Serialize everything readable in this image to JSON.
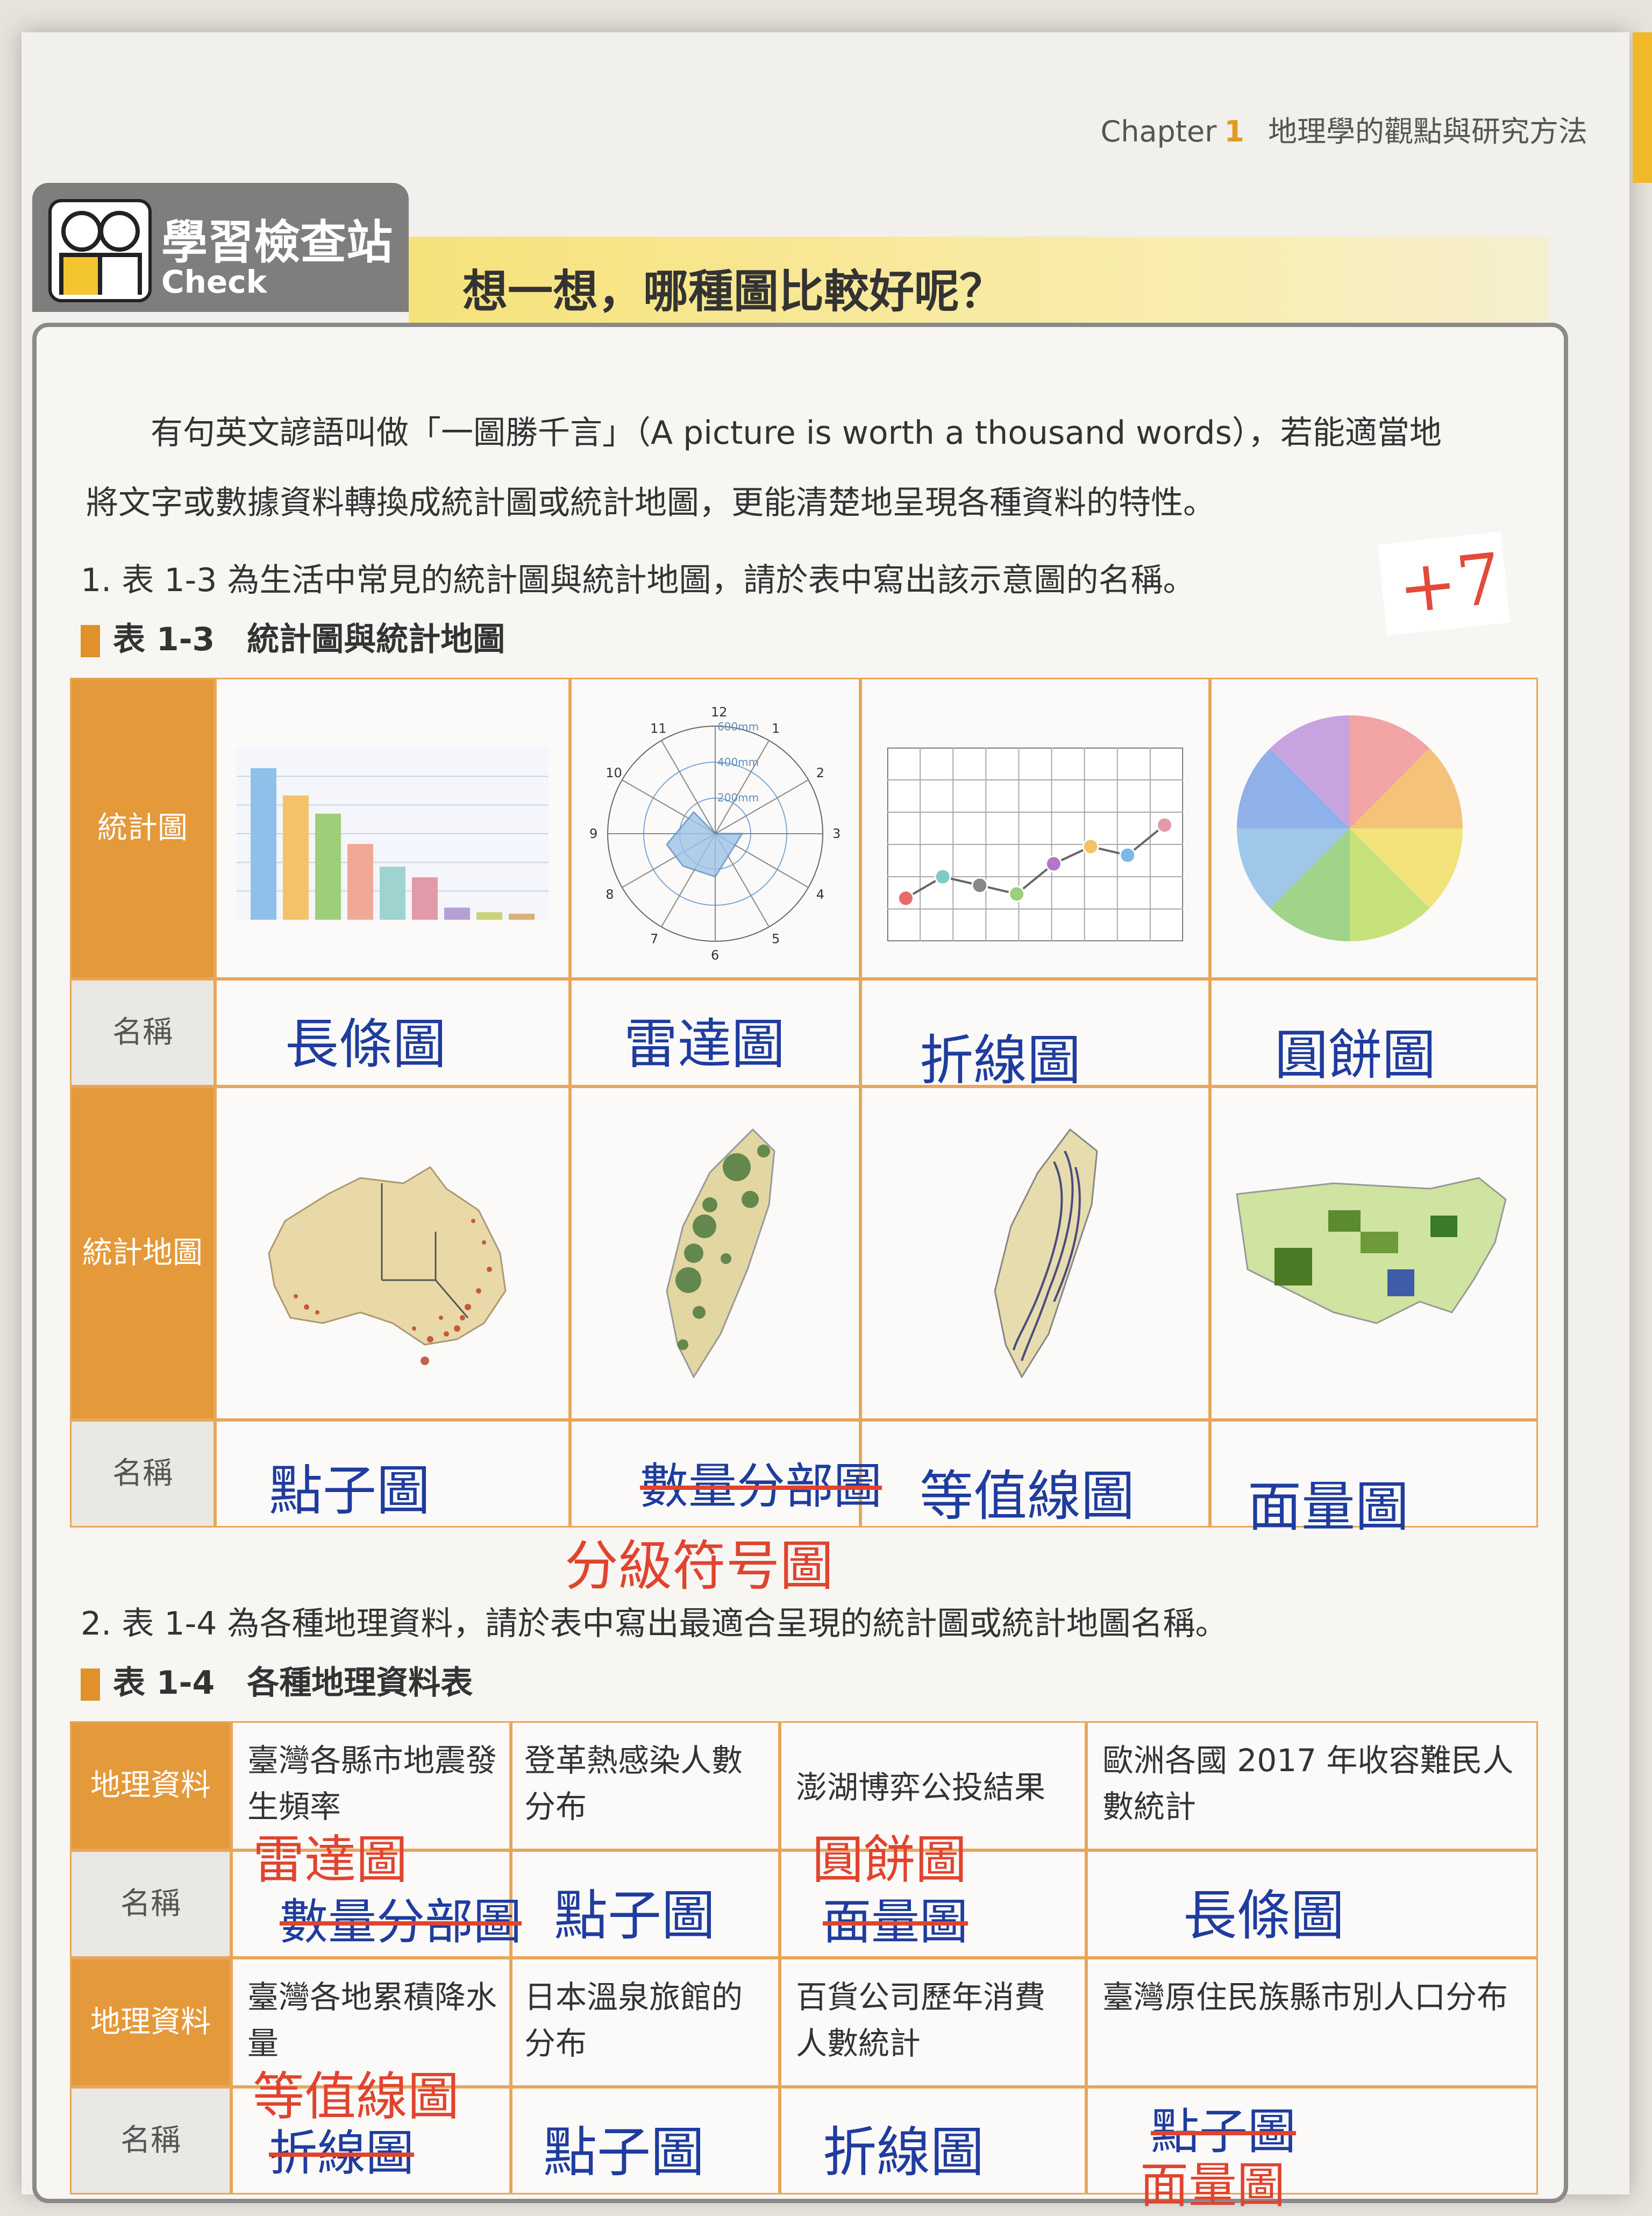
{
  "header": {
    "chapter_label": "Chapter",
    "chapter_num": "1",
    "chapter_title": "地理學的觀點與研究方法"
  },
  "check": {
    "cn": "學習檢查站",
    "en": "Check",
    "banner": "想一想，哪種圖比較好呢？"
  },
  "intro": {
    "line1": "有句英文諺語叫做「一圖勝千言」（A picture is worth a thousand words），若能適當地",
    "line2": "將文字或數據資料轉換成統計圖或統計地圖，更能清楚地呈現各種資料的特性。"
  },
  "score": "+7",
  "q1": "1. 表 1-3 為生活中常見的統計圖與統計地圖，請於表中寫出該示意圖的名稱。",
  "table13": {
    "num": "表 1-3",
    "title": "統計圖與統計地圖",
    "row1_label": "統計圖",
    "row2_label": "名稱",
    "row3_label": "統計地圖",
    "row4_label": "名稱",
    "radar_labels": [
      "12",
      "1",
      "2",
      "3",
      "4",
      "5",
      "6",
      "7",
      "8",
      "9",
      "10",
      "11"
    ],
    "radar_rings": [
      "600mm",
      "400mm",
      "200mm"
    ],
    "answers_chart": [
      "長條圖",
      "雷達圖",
      "折線圖",
      "圓餅圖"
    ],
    "answers_map": [
      "點子圖",
      "數量分部圖",
      "等值線圖",
      "面量圖"
    ],
    "correction_map2": "分級符号圖"
  },
  "q2": "2. 表 1-4 為各種地理資料，請於表中寫出最適合呈現的統計圖或統計地圖名稱。",
  "table14": {
    "num": "表 1-4",
    "title": "各種地理資料表",
    "data_label": "地理資料",
    "name_label": "名稱",
    "row1": [
      "臺灣各縣市地震發生頻率",
      "登革熱感染人數分布",
      "澎湖博弈公投結果",
      "歐洲各國 2017 年收容難民人數統計"
    ],
    "row1_answers": [
      "數量分部圖",
      "點子圖",
      "面量圖",
      "長條圖"
    ],
    "row1_corrections": [
      "雷達圖",
      "",
      "圓餅圖",
      ""
    ],
    "row2": [
      "臺灣各地累積降水量",
      "日本溫泉旅館的分布",
      "百貨公司歷年消費人數統計",
      "臺灣原住民族縣市別人口分布"
    ],
    "row2_answers": [
      "折線圖",
      "點子圖",
      "折線圖",
      "點子圖"
    ],
    "row2_corrections": [
      "等值線圖",
      "",
      "",
      "面量圖"
    ]
  },
  "colors": {
    "accent_orange": "#e4993a",
    "banner_yellow": "#f6e27a",
    "pen_blue": "#1f3c9e",
    "pen_red": "#e0442f"
  },
  "chart_data": [
    {
      "type": "bar",
      "values": [
        100,
        82,
        70,
        50,
        35,
        28,
        8,
        5,
        4
      ],
      "ylim": [
        0,
        110
      ]
    },
    {
      "type": "line",
      "values": [
        2,
        3,
        2.6,
        2.2,
        3.6,
        4.4,
        4,
        5.4
      ],
      "ylim": [
        0,
        9
      ]
    },
    {
      "type": "pie",
      "values": [
        1,
        1,
        1,
        1,
        1,
        1,
        1,
        1
      ]
    }
  ]
}
